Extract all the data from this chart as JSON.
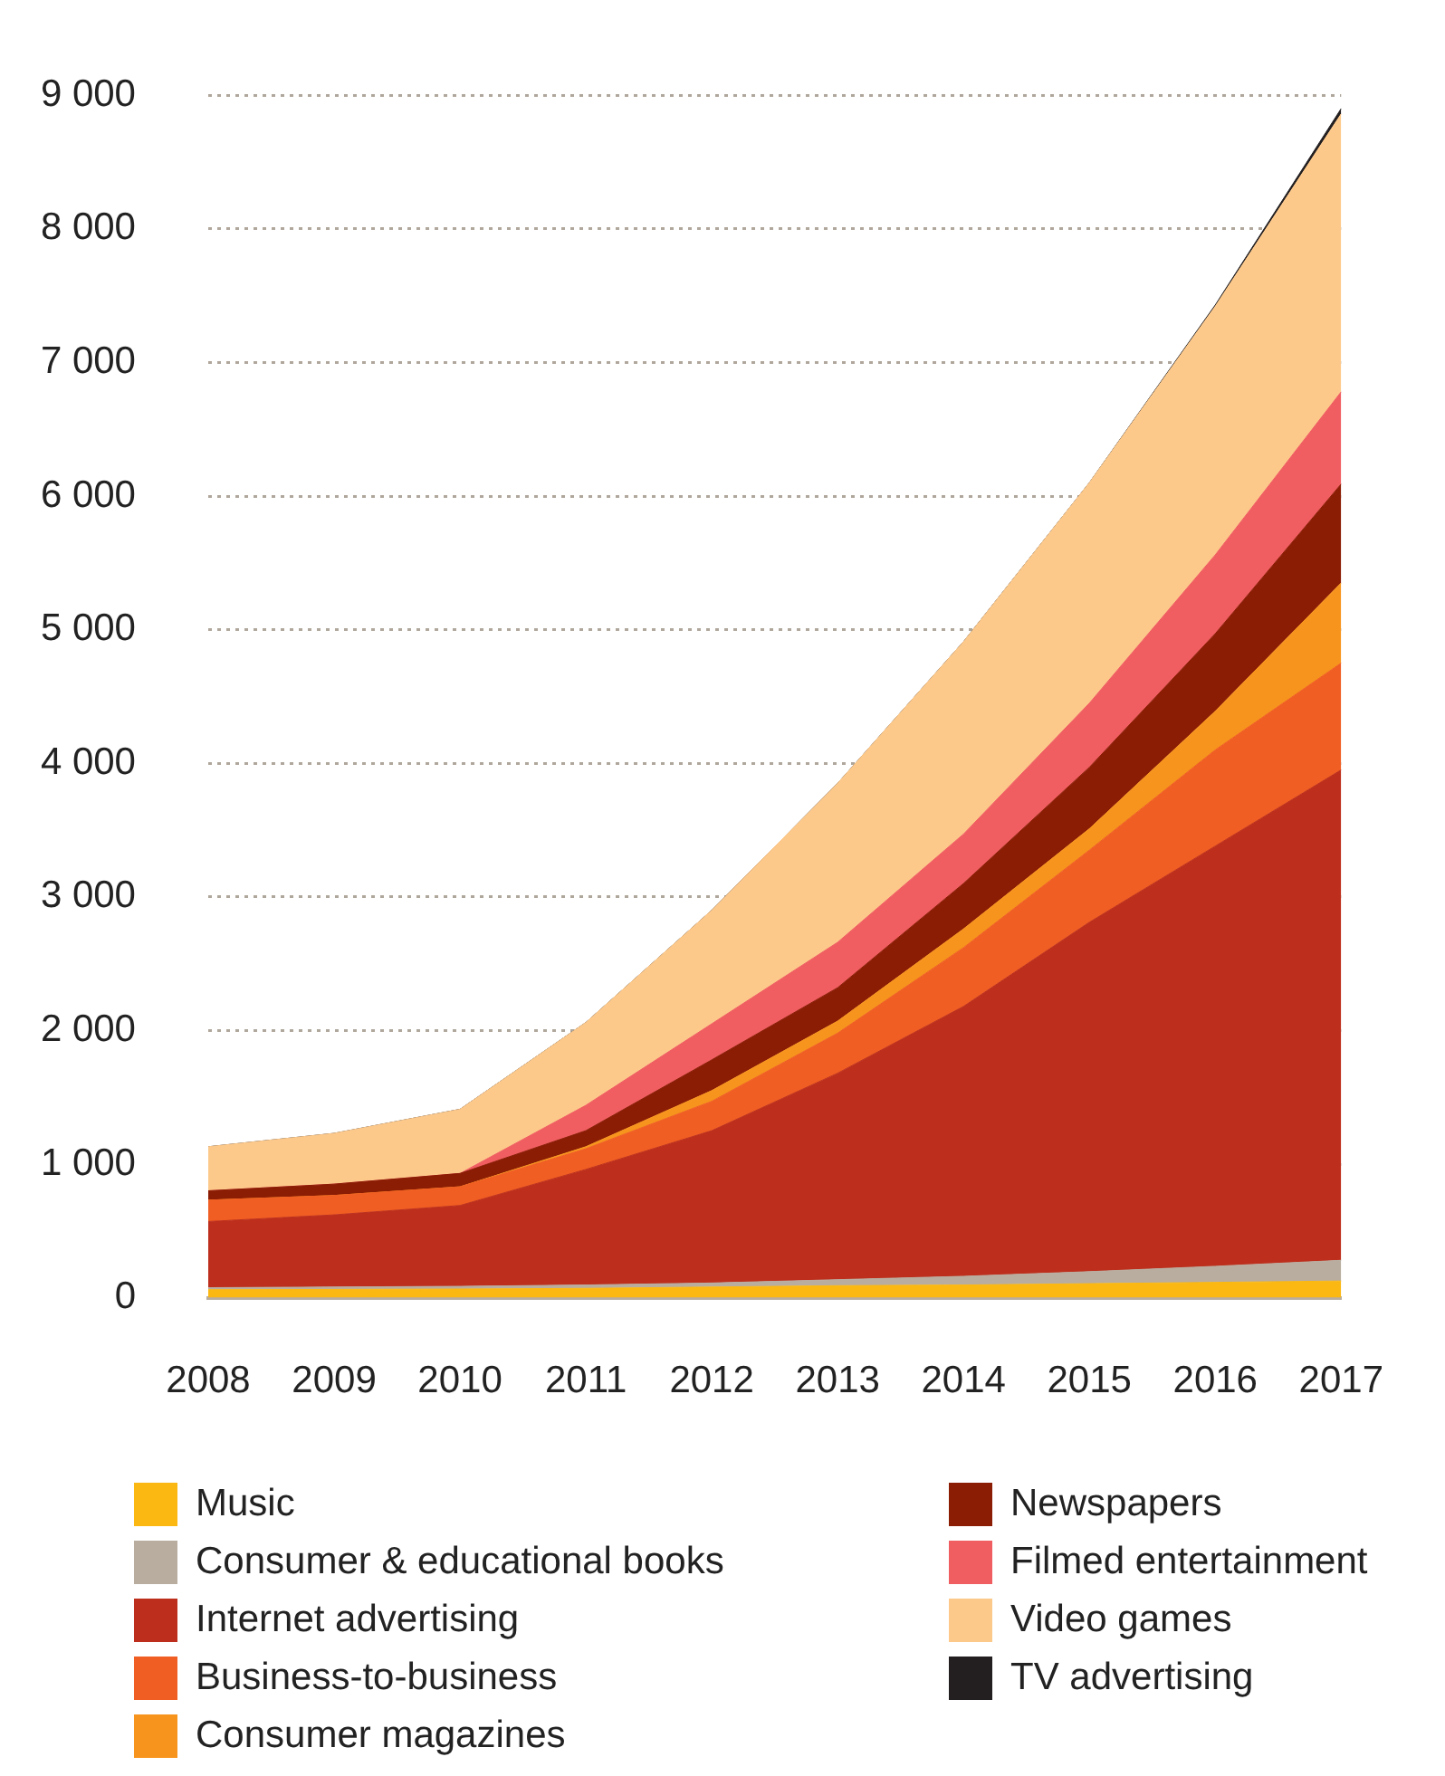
{
  "chart_data": {
    "type": "area",
    "stacked": true,
    "categories": [
      "2008",
      "2009",
      "2010",
      "2011",
      "2012",
      "2013",
      "2014",
      "2015",
      "2016",
      "2017"
    ],
    "series": [
      {
        "name": "Music",
        "color": "#fbb812",
        "values": [
          60,
          62,
          65,
          70,
          80,
          90,
          95,
          105,
          115,
          125
        ]
      },
      {
        "name": "Consumer & educational books",
        "color": "#b9ada0",
        "values": [
          15,
          18,
          20,
          25,
          30,
          45,
          65,
          90,
          120,
          155
        ]
      },
      {
        "name": "Internet advertising",
        "color": "#bd2f1c",
        "values": [
          495,
          540,
          605,
          865,
          1140,
          1545,
          2020,
          2615,
          3145,
          3670
        ]
      },
      {
        "name": "Business-to-business",
        "color": "#f05e23",
        "values": [
          160,
          145,
          140,
          155,
          220,
          300,
          440,
          540,
          720,
          800
        ]
      },
      {
        "name": "Consumer magazines",
        "color": "#f7941d",
        "values": [
          0,
          0,
          0,
          15,
          80,
          90,
          140,
          160,
          290,
          600
        ]
      },
      {
        "name": "Newspapers",
        "color": "#8b1d05",
        "values": [
          70,
          85,
          100,
          120,
          230,
          250,
          340,
          460,
          580,
          740
        ]
      },
      {
        "name": "Filmed entertainment",
        "color": "#f05e61",
        "values": [
          0,
          0,
          0,
          190,
          270,
          340,
          370,
          480,
          590,
          690
        ]
      },
      {
        "name": "Video games",
        "color": "#fdc98b",
        "values": [
          330,
          380,
          480,
          620,
          850,
          1190,
          1440,
          1650,
          1860,
          2080
        ]
      },
      {
        "name": "TV advertising",
        "color": "#231f20",
        "values": [
          0,
          0,
          0,
          0,
          0,
          0,
          0,
          0,
          10,
          40
        ]
      }
    ],
    "ylim": [
      0,
      9000
    ],
    "yticks": [
      0,
      {
        "value": 1000,
        "label": "1 000"
      },
      {
        "value": 2000,
        "label": "2 000"
      },
      {
        "value": 3000,
        "label": "3 000"
      },
      {
        "value": 4000,
        "label": "4 000"
      },
      {
        "value": 5000,
        "label": "5 000"
      },
      {
        "value": 6000,
        "label": "6 000"
      },
      {
        "value": 7000,
        "label": "7 000"
      },
      {
        "value": 8000,
        "label": "8 000"
      },
      {
        "value": 9000,
        "label": "9 000"
      }
    ],
    "grid": "y",
    "line_style": "dotted",
    "legend": "bottom",
    "marker": "none"
  }
}
